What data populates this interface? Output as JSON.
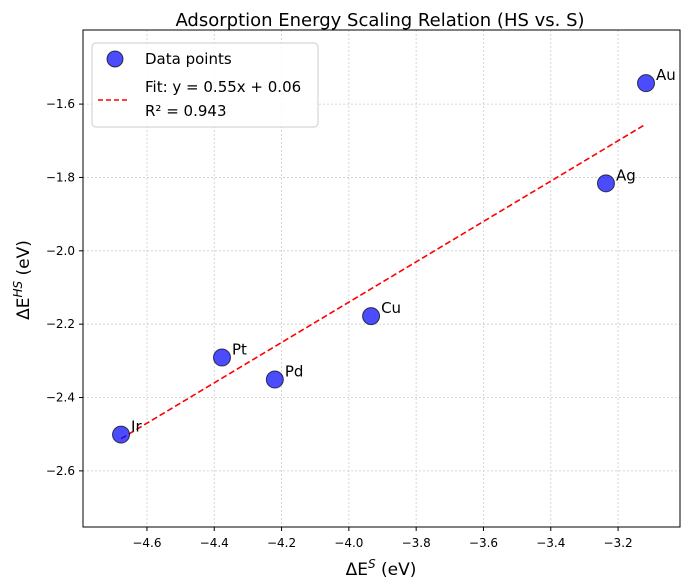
{
  "chart_data": {
    "type": "scatter",
    "title": "Adsorption Energy Scaling Relation (HS vs. S)",
    "xlabel": "ΔE^S (eV)",
    "ylabel": "ΔE^HS (eV)",
    "xlim": [
      -4.79,
      -3.016
    ],
    "ylim": [
      -2.753,
      -1.398
    ],
    "xticks": [
      -4.6,
      -4.4,
      -4.2,
      -4.0,
      -3.8,
      -3.6,
      -3.4,
      -3.2
    ],
    "yticks": [
      -1.6,
      -1.8,
      -2.0,
      -2.2,
      -2.4,
      -2.6
    ],
    "xtick_labels": [
      "−4.6",
      "−4.4",
      "−4.2",
      "−4.0",
      "−3.8",
      "−3.6",
      "−3.4",
      "−3.2"
    ],
    "ytick_labels": [
      "−1.6",
      "−1.8",
      "−2.0",
      "−2.2",
      "−2.4",
      "−2.6"
    ],
    "grid": true,
    "legend_position": "top-left",
    "series": [
      {
        "name": "Data points",
        "type": "scatter",
        "color": "#0000ff",
        "points": [
          {
            "label": "Ir",
            "x": -4.677,
            "y": -2.501
          },
          {
            "label": "Pt",
            "x": -4.377,
            "y": -2.291
          },
          {
            "label": "Pd",
            "x": -4.22,
            "y": -2.351
          },
          {
            "label": "Cu",
            "x": -3.934,
            "y": -2.178
          },
          {
            "label": "Ag",
            "x": -3.236,
            "y": -1.816
          },
          {
            "label": "Au",
            "x": -3.117,
            "y": -1.543
          }
        ]
      },
      {
        "name": "Fit: y = 0.55x + 0.06",
        "name_line2": "R² = 0.943",
        "type": "line",
        "color": "#ff0000",
        "slope": 0.55,
        "intercept": 0.06,
        "r2": 0.943,
        "x_range": [
          -4.677,
          -3.117
        ]
      }
    ]
  }
}
